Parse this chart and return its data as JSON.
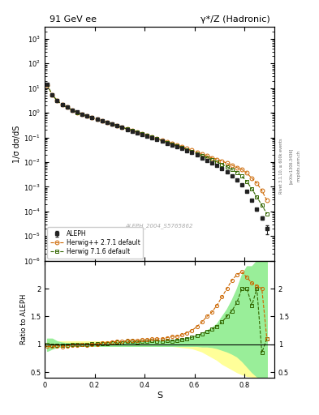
{
  "title_left": "91 GeV ee",
  "title_right": "γ*/Z (Hadronic)",
  "ylabel_main": "1/σ dσ/dS",
  "ylabel_ratio": "Ratio to ALEPH",
  "xlabel": "S",
  "watermark": "ALEPH_2004_S5765862",
  "right_label": "Rivet 3.1.10, ≥ 600k events",
  "arxiv_label": "[arXiv:1306.3436]",
  "mcplots_label": "mcplots.cern.ch",
  "aleph_x": [
    0.01,
    0.03,
    0.05,
    0.07,
    0.09,
    0.11,
    0.13,
    0.15,
    0.17,
    0.19,
    0.21,
    0.23,
    0.25,
    0.27,
    0.29,
    0.31,
    0.33,
    0.35,
    0.37,
    0.39,
    0.41,
    0.43,
    0.45,
    0.47,
    0.49,
    0.51,
    0.53,
    0.55,
    0.57,
    0.59,
    0.61,
    0.63,
    0.65,
    0.67,
    0.69,
    0.71,
    0.73,
    0.75,
    0.77,
    0.79,
    0.81,
    0.83,
    0.85,
    0.87,
    0.89
  ],
  "aleph_y": [
    14.0,
    5.5,
    3.2,
    2.2,
    1.7,
    1.3,
    1.05,
    0.88,
    0.74,
    0.63,
    0.54,
    0.46,
    0.4,
    0.34,
    0.29,
    0.25,
    0.21,
    0.18,
    0.155,
    0.132,
    0.113,
    0.096,
    0.082,
    0.07,
    0.059,
    0.05,
    0.042,
    0.035,
    0.029,
    0.024,
    0.019,
    0.015,
    0.012,
    0.0095,
    0.0073,
    0.0055,
    0.004,
    0.0028,
    0.0019,
    0.0012,
    0.00065,
    0.00028,
    0.00012,
    5.5e-05,
    2e-05
  ],
  "aleph_yerr": [
    0.3,
    0.1,
    0.06,
    0.04,
    0.03,
    0.02,
    0.015,
    0.012,
    0.01,
    0.009,
    0.008,
    0.007,
    0.006,
    0.005,
    0.004,
    0.004,
    0.003,
    0.003,
    0.0025,
    0.002,
    0.0018,
    0.0015,
    0.0013,
    0.0011,
    0.0009,
    0.0008,
    0.0007,
    0.0006,
    0.0005,
    0.0004,
    0.00035,
    0.0003,
    0.00025,
    0.0002,
    0.00015,
    0.00012,
    9e-05,
    7e-05,
    5e-05,
    4e-05,
    3e-05,
    2e-05,
    1.5e-05,
    1e-05,
    8e-06
  ],
  "herwig_pp_x": [
    0.01,
    0.03,
    0.05,
    0.07,
    0.09,
    0.11,
    0.13,
    0.15,
    0.17,
    0.19,
    0.21,
    0.23,
    0.25,
    0.27,
    0.29,
    0.31,
    0.33,
    0.35,
    0.37,
    0.39,
    0.41,
    0.43,
    0.45,
    0.47,
    0.49,
    0.51,
    0.53,
    0.55,
    0.57,
    0.59,
    0.61,
    0.63,
    0.65,
    0.67,
    0.69,
    0.71,
    0.73,
    0.75,
    0.77,
    0.79,
    0.81,
    0.83,
    0.85,
    0.87,
    0.89
  ],
  "herwig_pp_y": [
    13.5,
    5.3,
    3.1,
    2.1,
    1.65,
    1.28,
    1.03,
    0.87,
    0.73,
    0.63,
    0.54,
    0.47,
    0.41,
    0.355,
    0.305,
    0.262,
    0.224,
    0.193,
    0.165,
    0.142,
    0.122,
    0.105,
    0.09,
    0.077,
    0.066,
    0.057,
    0.048,
    0.041,
    0.035,
    0.03,
    0.025,
    0.021,
    0.018,
    0.015,
    0.013,
    0.011,
    0.009,
    0.0075,
    0.006,
    0.005,
    0.0036,
    0.0022,
    0.0014,
    0.0007,
    0.00028
  ],
  "herwig7_x": [
    0.01,
    0.03,
    0.05,
    0.07,
    0.09,
    0.11,
    0.13,
    0.15,
    0.17,
    0.19,
    0.21,
    0.23,
    0.25,
    0.27,
    0.29,
    0.31,
    0.33,
    0.35,
    0.37,
    0.39,
    0.41,
    0.43,
    0.45,
    0.47,
    0.49,
    0.51,
    0.53,
    0.55,
    0.57,
    0.59,
    0.61,
    0.63,
    0.65,
    0.67,
    0.69,
    0.71,
    0.73,
    0.75,
    0.77,
    0.79,
    0.81,
    0.83,
    0.85,
    0.87,
    0.89
  ],
  "herwig7_y": [
    13.8,
    5.4,
    3.15,
    2.15,
    1.67,
    1.3,
    1.04,
    0.875,
    0.735,
    0.633,
    0.543,
    0.468,
    0.405,
    0.35,
    0.3,
    0.258,
    0.22,
    0.189,
    0.162,
    0.139,
    0.119,
    0.102,
    0.087,
    0.074,
    0.063,
    0.053,
    0.045,
    0.038,
    0.032,
    0.027,
    0.022,
    0.018,
    0.015,
    0.0123,
    0.01,
    0.0082,
    0.0065,
    0.005,
    0.0038,
    0.0027,
    0.0016,
    0.00082,
    0.00038,
    0.00018,
    8e-05
  ],
  "herwig_pp_ratio": [
    0.96,
    0.96,
    0.97,
    0.955,
    0.97,
    0.985,
    0.981,
    0.989,
    0.986,
    1.0,
    1.0,
    1.022,
    1.025,
    1.044,
    1.052,
    1.048,
    1.067,
    1.072,
    1.065,
    1.076,
    1.08,
    1.094,
    1.098,
    1.1,
    1.119,
    1.14,
    1.143,
    1.171,
    1.207,
    1.25,
    1.316,
    1.4,
    1.5,
    1.579,
    1.7,
    1.85,
    2.0,
    2.15,
    2.25,
    2.3,
    2.2,
    2.1,
    2.05,
    2.0,
    1.1
  ],
  "herwig7_ratio": [
    0.99,
    0.985,
    0.984,
    0.977,
    0.982,
    1.0,
    0.99,
    0.994,
    0.993,
    1.005,
    1.006,
    1.017,
    1.013,
    1.029,
    1.034,
    1.032,
    1.048,
    1.05,
    1.045,
    1.053,
    1.053,
    1.063,
    1.061,
    1.057,
    1.068,
    1.06,
    1.071,
    1.086,
    1.103,
    1.125,
    1.158,
    1.19,
    1.23,
    1.27,
    1.32,
    1.4,
    1.5,
    1.6,
    1.75,
    2.0,
    2.0,
    1.7,
    2.0,
    0.85,
    1.1
  ],
  "yellow_upper": [
    1.05,
    1.05,
    1.05,
    1.05,
    1.05,
    1.05,
    1.05,
    1.05,
    1.05,
    1.05,
    1.05,
    1.05,
    1.05,
    1.05,
    1.05,
    1.05,
    1.05,
    1.05,
    1.05,
    1.05,
    1.05,
    1.05,
    1.05,
    1.05,
    1.05,
    1.05,
    1.05,
    1.05,
    1.05,
    1.05,
    1.05,
    1.05,
    1.05,
    1.05,
    1.08,
    1.1,
    1.15,
    1.2,
    1.3,
    1.5,
    1.8,
    2.2,
    2.5,
    2.5,
    2.5
  ],
  "yellow_lower": [
    0.93,
    0.94,
    0.95,
    0.96,
    0.97,
    0.97,
    0.97,
    0.97,
    0.97,
    0.97,
    0.97,
    0.97,
    0.97,
    0.97,
    0.97,
    0.97,
    0.97,
    0.97,
    0.97,
    0.97,
    0.97,
    0.97,
    0.97,
    0.97,
    0.97,
    0.97,
    0.96,
    0.95,
    0.94,
    0.93,
    0.9,
    0.87,
    0.82,
    0.77,
    0.72,
    0.65,
    0.6,
    0.55,
    0.5,
    0.46,
    0.43,
    0.42,
    0.4,
    0.4,
    0.4
  ],
  "green_upper": [
    1.1,
    1.1,
    1.05,
    1.03,
    1.02,
    1.02,
    1.02,
    1.02,
    1.02,
    1.02,
    1.02,
    1.03,
    1.03,
    1.04,
    1.04,
    1.04,
    1.05,
    1.05,
    1.05,
    1.05,
    1.05,
    1.06,
    1.06,
    1.06,
    1.07,
    1.07,
    1.08,
    1.09,
    1.11,
    1.13,
    1.16,
    1.2,
    1.25,
    1.3,
    1.37,
    1.5,
    1.63,
    1.8,
    2.0,
    2.25,
    2.4,
    2.4,
    2.5,
    2.5,
    2.5
  ],
  "green_lower": [
    0.88,
    0.92,
    0.95,
    0.96,
    0.97,
    0.97,
    0.97,
    0.97,
    0.97,
    0.97,
    0.97,
    0.97,
    0.97,
    0.97,
    0.97,
    0.97,
    0.97,
    0.97,
    0.97,
    0.97,
    0.97,
    0.97,
    0.97,
    0.97,
    0.97,
    0.97,
    0.97,
    0.97,
    0.97,
    0.97,
    0.97,
    0.96,
    0.96,
    0.95,
    0.93,
    0.9,
    0.87,
    0.83,
    0.78,
    0.7,
    0.6,
    0.5,
    0.42,
    0.4,
    0.4
  ],
  "herwig_pp_color": "#cc6600",
  "herwig7_color": "#336600",
  "aleph_color": "#222222",
  "band_yellow_color": "#ffff99",
  "band_green_color": "#99ee99",
  "ylim_main": [
    1e-06,
    3000
  ],
  "ylim_ratio": [
    0.4,
    2.5
  ],
  "xlim": [
    0.0,
    0.92
  ]
}
